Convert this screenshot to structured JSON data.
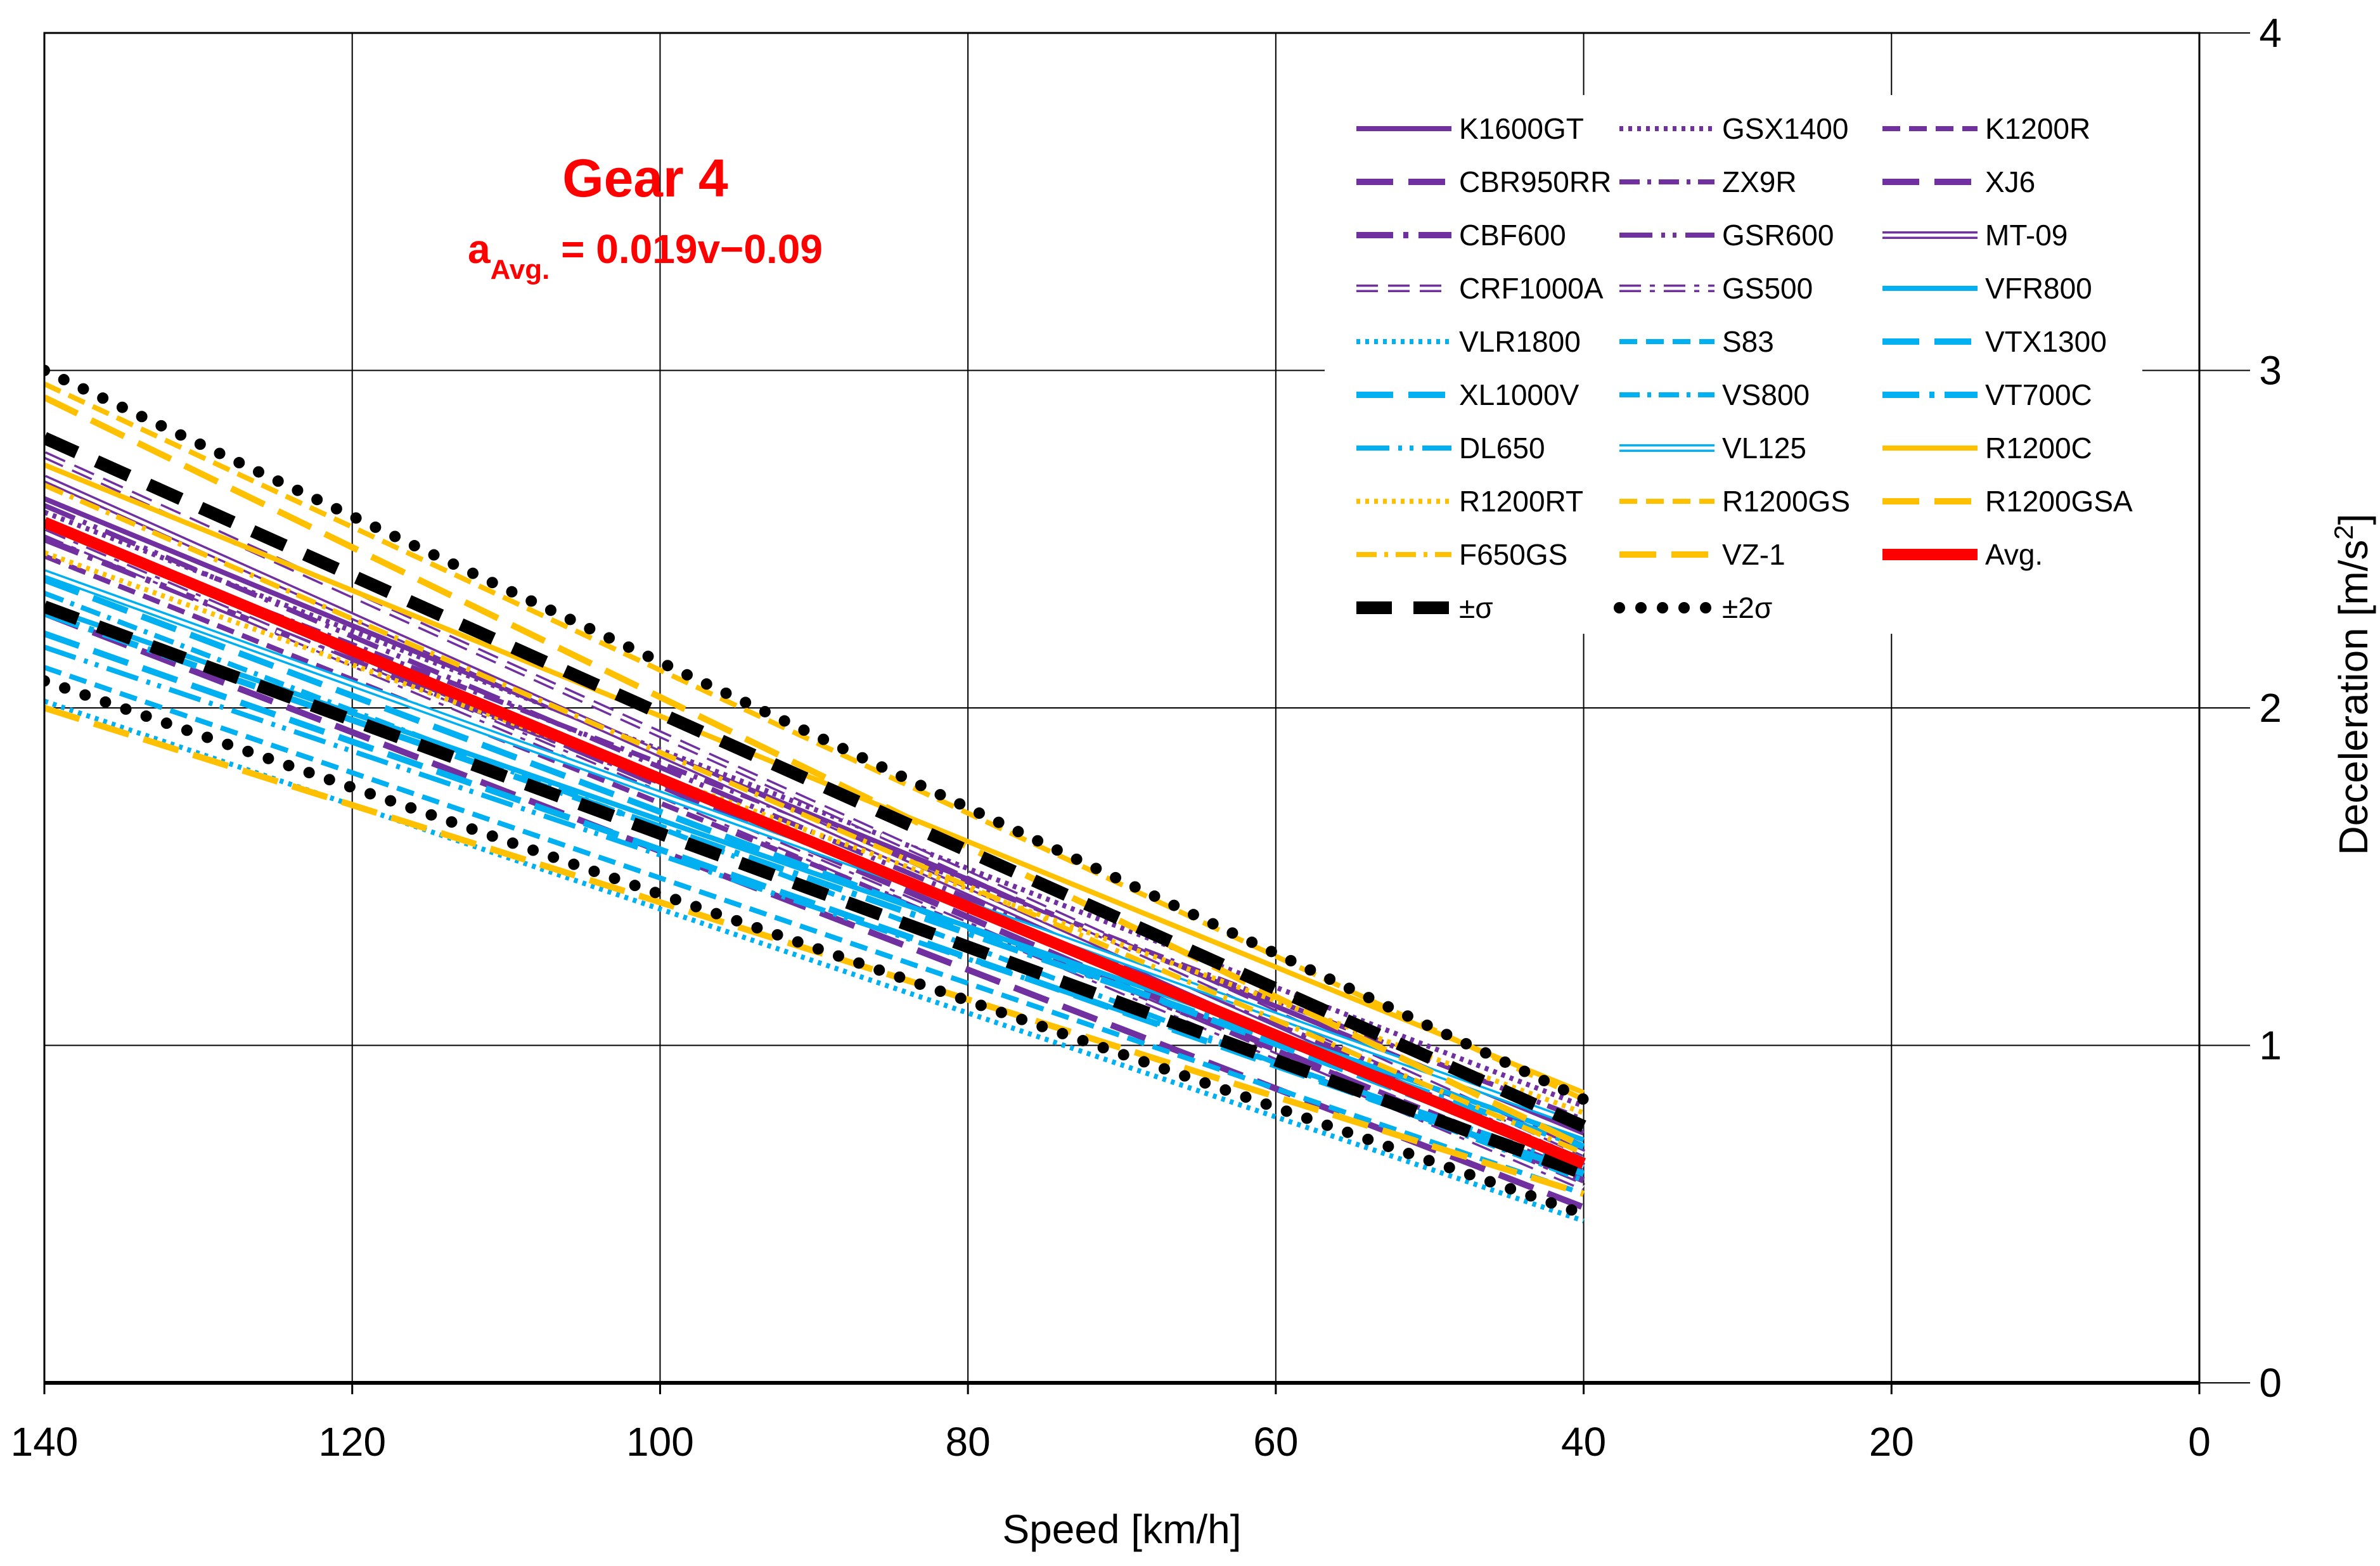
{
  "chart_data": {
    "type": "line",
    "title": "Gear 4",
    "equation": {
      "prefix": "a",
      "subscript": "Avg.",
      "rhs": " = 0.019v−0.09"
    },
    "xlabel": "Speed [km/h]",
    "ylabel": "Deceleration [m/s",
    "ylabel_sup": "2",
    "ylabel_end": "]",
    "x_reversed": true,
    "xlim": [
      140,
      0
    ],
    "ylim": [
      0,
      4
    ],
    "x_ticks": [
      140,
      120,
      100,
      80,
      60,
      40,
      20,
      0
    ],
    "y_ticks": [
      0,
      1,
      2,
      3,
      4
    ],
    "grid": true,
    "legend_position": "top-right",
    "colors": {
      "purple": "#7030A0",
      "blue": "#00B0F0",
      "orange": "#FFC000",
      "red": "#FF0000",
      "black": "#000000"
    },
    "series": [
      {
        "name": "K1600GT",
        "style": "solid",
        "color": "#7030A0",
        "points": [
          [
            140,
            2.62
          ],
          [
            40,
            0.74
          ]
        ]
      },
      {
        "name": "GSX1400",
        "style": "dot",
        "color": "#7030A0",
        "points": [
          [
            140,
            2.58
          ],
          [
            40,
            0.82
          ]
        ]
      },
      {
        "name": "K1200R",
        "style": "dash",
        "color": "#7030A0",
        "points": [
          [
            140,
            2.45
          ],
          [
            40,
            0.62
          ]
        ]
      },
      {
        "name": "CBR950RR",
        "style": "longdash",
        "color": "#7030A0",
        "points": [
          [
            140,
            2.28
          ],
          [
            40,
            0.52
          ]
        ]
      },
      {
        "name": "ZX9R",
        "style": "dashdot",
        "color": "#7030A0",
        "points": [
          [
            140,
            2.54
          ],
          [
            40,
            0.78
          ]
        ]
      },
      {
        "name": "XJ6",
        "style": "longdash",
        "color": "#7030A0",
        "points": [
          [
            140,
            2.55
          ],
          [
            40,
            0.6
          ]
        ]
      },
      {
        "name": "CBF600",
        "style": "longdashdot",
        "color": "#7030A0",
        "points": [
          [
            140,
            2.5
          ],
          [
            40,
            0.7
          ]
        ]
      },
      {
        "name": "GSR600",
        "style": "longdashdotdot",
        "color": "#7030A0",
        "points": [
          [
            140,
            2.6
          ],
          [
            40,
            0.66
          ]
        ]
      },
      {
        "name": "MT-09",
        "style": "double",
        "color": "#7030A0",
        "points": [
          [
            140,
            2.68
          ],
          [
            40,
            0.64
          ]
        ]
      },
      {
        "name": "CRF1000A",
        "style": "doubledash",
        "color": "#7030A0",
        "points": [
          [
            140,
            2.75
          ],
          [
            40,
            0.68
          ]
        ]
      },
      {
        "name": "GS500",
        "style": "doubledashdot",
        "color": "#7030A0",
        "points": [
          [
            140,
            2.52
          ],
          [
            40,
            0.58
          ]
        ]
      },
      {
        "name": "VFR800",
        "style": "solid",
        "color": "#00B0F0",
        "points": [
          [
            140,
            2.3
          ],
          [
            40,
            0.72
          ]
        ]
      },
      {
        "name": "VLR1800",
        "style": "dot",
        "color": "#00B0F0",
        "points": [
          [
            140,
            2.02
          ],
          [
            40,
            0.48
          ]
        ]
      },
      {
        "name": "S83",
        "style": "dash",
        "color": "#00B0F0",
        "points": [
          [
            140,
            2.12
          ],
          [
            40,
            0.56
          ]
        ]
      },
      {
        "name": "VTX1300",
        "style": "longdash",
        "color": "#00B0F0",
        "points": [
          [
            140,
            2.22
          ],
          [
            40,
            0.62
          ]
        ]
      },
      {
        "name": "XL1000V",
        "style": "longdash",
        "color": "#00B0F0",
        "points": [
          [
            140,
            2.38
          ],
          [
            40,
            0.66
          ]
        ]
      },
      {
        "name": "VS800",
        "style": "dashdot",
        "color": "#00B0F0",
        "points": [
          [
            140,
            2.34
          ],
          [
            40,
            0.6
          ]
        ]
      },
      {
        "name": "VT700C",
        "style": "longdashdot",
        "color": "#00B0F0",
        "points": [
          [
            140,
            2.28
          ],
          [
            40,
            0.7
          ]
        ]
      },
      {
        "name": "DL650",
        "style": "longdashdotdot",
        "color": "#00B0F0",
        "points": [
          [
            140,
            2.18
          ],
          [
            40,
            0.64
          ]
        ]
      },
      {
        "name": "VL125",
        "style": "double",
        "color": "#00B0F0",
        "points": [
          [
            140,
            2.4
          ],
          [
            40,
            0.76
          ]
        ]
      },
      {
        "name": "R1200C",
        "style": "solid",
        "color": "#FFC000",
        "points": [
          [
            140,
            2.72
          ],
          [
            40,
            0.86
          ]
        ]
      },
      {
        "name": "R1200RT",
        "style": "dot",
        "color": "#FFC000",
        "points": [
          [
            140,
            2.46
          ],
          [
            40,
            0.8
          ]
        ]
      },
      {
        "name": "R1200GS",
        "style": "dash",
        "color": "#FFC000",
        "points": [
          [
            140,
            2.96
          ],
          [
            40,
            0.84
          ]
        ]
      },
      {
        "name": "R1200GSA",
        "style": "longdash",
        "color": "#FFC000",
        "points": [
          [
            140,
            2.92
          ],
          [
            40,
            0.7
          ]
        ]
      },
      {
        "name": "F650GS",
        "style": "dashdot",
        "color": "#FFC000",
        "points": [
          [
            140,
            2.66
          ],
          [
            40,
            0.68
          ]
        ]
      },
      {
        "name": "VZ-1",
        "style": "longdash",
        "color": "#FFC000",
        "points": [
          [
            140,
            2.0
          ],
          [
            40,
            0.56
          ]
        ]
      },
      {
        "name": "Avg.",
        "style": "avg",
        "color": "#FF0000",
        "points": [
          [
            140,
            2.55
          ],
          [
            40,
            0.65
          ]
        ]
      },
      {
        "name": "±σ",
        "style": "sigma",
        "color": "#000000",
        "points": [
          [
            140,
            2.8
          ],
          [
            40,
            0.76
          ]
        ]
      },
      {
        "name": "±σ",
        "legend": false,
        "style": "sigma",
        "color": "#000000",
        "points": [
          [
            140,
            2.3
          ],
          [
            40,
            0.62
          ]
        ]
      },
      {
        "name": "±2σ",
        "style": "sigma2",
        "color": "#000000",
        "points": [
          [
            140,
            3.0
          ],
          [
            40,
            0.84
          ]
        ]
      },
      {
        "name": "±2σ",
        "legend": false,
        "style": "sigma2",
        "color": "#000000",
        "points": [
          [
            140,
            2.08
          ],
          [
            40,
            0.5
          ]
        ]
      }
    ]
  }
}
